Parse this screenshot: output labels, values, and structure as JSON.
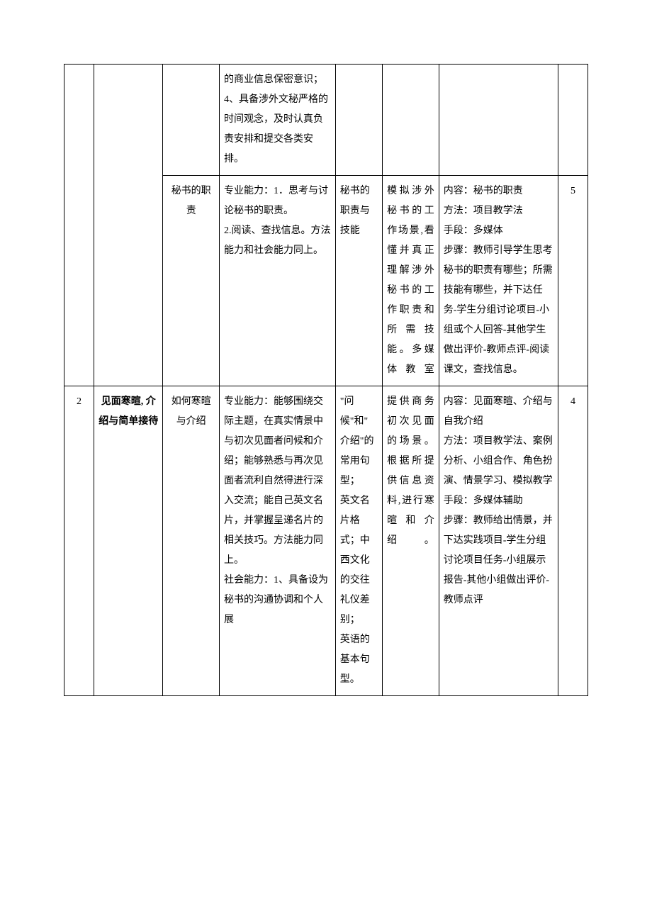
{
  "table": {
    "rows": [
      {
        "num": "",
        "topic": "",
        "sub": "",
        "ability": "的商业信息保密意识；4、具备涉外文秘严格的时间观念，及时认真负责安排和提交各类安排。",
        "knowledge": "",
        "scenario": "",
        "method": "",
        "hours": ""
      },
      {
        "num": "",
        "topic": "",
        "sub": "秘书的职责",
        "ability": "专业能力：1．思考与讨论秘书的职责。\n2.阅读、查找信息。方法能力和社会能力同上。",
        "knowledge": "秘书的职责与技能",
        "scenario": "模拟涉外秘书的工作场景,看懂并真正理解涉外秘书的工作职责和所需技能。多媒体教室",
        "method": "内容：秘书的职责\n方法：项目教学法\n手段：多媒体\n步骤：教师引导学生思考秘书的职责有哪些；所需技能有哪些，并下达任务-学生分组讨论项目-小组或个人回答-其他学生做出评价-教师点评-阅读课文，查找信息。",
        "hours": "5"
      },
      {
        "num": "2",
        "topic": "见面寒暄, 介绍与简单接待",
        "sub": "如何寒暄与介绍",
        "ability": "专业能力：能够围绕交际主题，在真实情景中与初次见面者问候和介绍；能够熟悉与再次见面者流利自然得进行深入交流；能自己英文名片，并掌握呈递名片的相关技巧。方法能力同上。\n社会能力：1、具备设为秘书的沟通协调和个人展",
        "knowledge": "\"问候\"和\"介绍\"的常用句型；\n英文名片格式；中西文化的交往礼仪差别；\n英语的基本句型。",
        "scenario": "提供商务初次见面的场景。根据所提供信息资料,进行寒暄和介绍。",
        "method": "内容：见面寒暄、介绍与自我介绍\n方法：项目教学法、案例分析、小组合作、角色扮演、情景学习、模拟教学\n手段：多媒体辅助\n步骤：教师给出情景，并下达实践项目-学生分组讨论项目任务-小组展示报告-其他小组做出评价-教师点评",
        "hours": "4"
      }
    ]
  },
  "style": {
    "background": "#ffffff",
    "border_color": "#000000",
    "text_color": "#000000",
    "font_size": 14
  }
}
